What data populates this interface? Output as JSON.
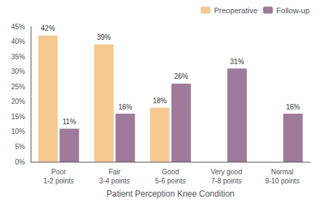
{
  "chart_data": {
    "type": "bar",
    "xlabel": "Patient Perception Knee Condition",
    "categories": [
      "Poor\n1-2 points",
      "Fair\n3-4 points",
      "Good\n5-6 points",
      "Very good\n7-8 points",
      "Normal\n9-10 points"
    ],
    "series": [
      {
        "name": "Preoperative",
        "color": "#F5C890",
        "values": [
          42,
          39,
          18,
          0,
          0
        ],
        "value_labels": [
          "42%",
          "39%",
          "18%",
          null,
          null
        ]
      },
      {
        "name": "Follow-up",
        "color": "#9F7A9A",
        "values": [
          11,
          16,
          26,
          31,
          16
        ],
        "value_labels": [
          "11%",
          "16%",
          "26%",
          "31%",
          "16%"
        ]
      }
    ],
    "ylim": [
      0,
      45
    ],
    "yticks": [
      {
        "value": 0,
        "label": "0%"
      },
      {
        "value": 5,
        "label": "5%"
      },
      {
        "value": 10,
        "label": "10%"
      },
      {
        "value": 15,
        "label": "15%"
      },
      {
        "value": 20,
        "label": "20%"
      },
      {
        "value": 25,
        "label": "25%"
      },
      {
        "value": 30,
        "label": "30%"
      },
      {
        "value": 35,
        "label": "35%"
      },
      {
        "value": 40,
        "label": "40%"
      },
      {
        "value": 45,
        "label": "45%"
      }
    ],
    "data_labels": true,
    "legend": "upper right",
    "grid": false
  }
}
